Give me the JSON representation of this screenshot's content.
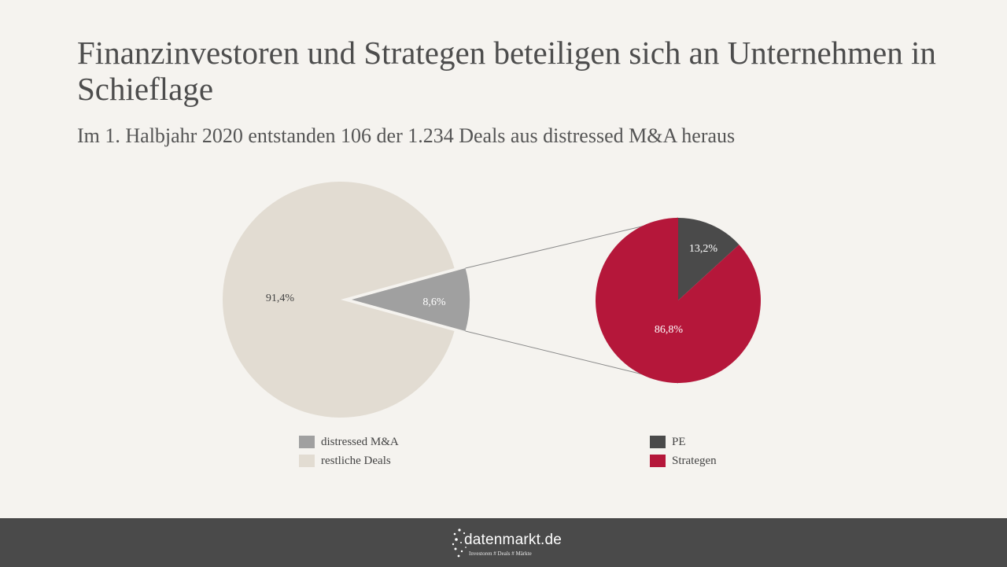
{
  "header": {
    "title": "Finanzinvestoren und Strategen beteiligen sich an Unternehmen in Schieflage",
    "subtitle": "Im 1. Halbjahr 2020 entstanden 106 der 1.234 Deals aus distressed M&A heraus"
  },
  "chart_data": [
    {
      "type": "pie",
      "slices": [
        {
          "name": "distressed M&A",
          "value": 8.6,
          "label": "8,6%",
          "color": "#a0a0a0",
          "exploded": true
        },
        {
          "name": "restliche Deals",
          "value": 91.4,
          "label": "91,4%",
          "color": "#e2dcd2"
        }
      ],
      "legend": "bottom"
    },
    {
      "type": "pie",
      "slices": [
        {
          "name": "PE",
          "value": 13.2,
          "label": "13,2%",
          "color": "#4a4a4a"
        },
        {
          "name": "Strategen",
          "value": 86.8,
          "label": "86,8%",
          "color": "#b5173a"
        }
      ],
      "legend": "bottom"
    }
  ],
  "footer": {
    "logo_text": "datenmarkt.de",
    "logo_tagline": "Investoren # Deals # Märkte",
    "logo_icon": "dots-constellation-icon"
  }
}
